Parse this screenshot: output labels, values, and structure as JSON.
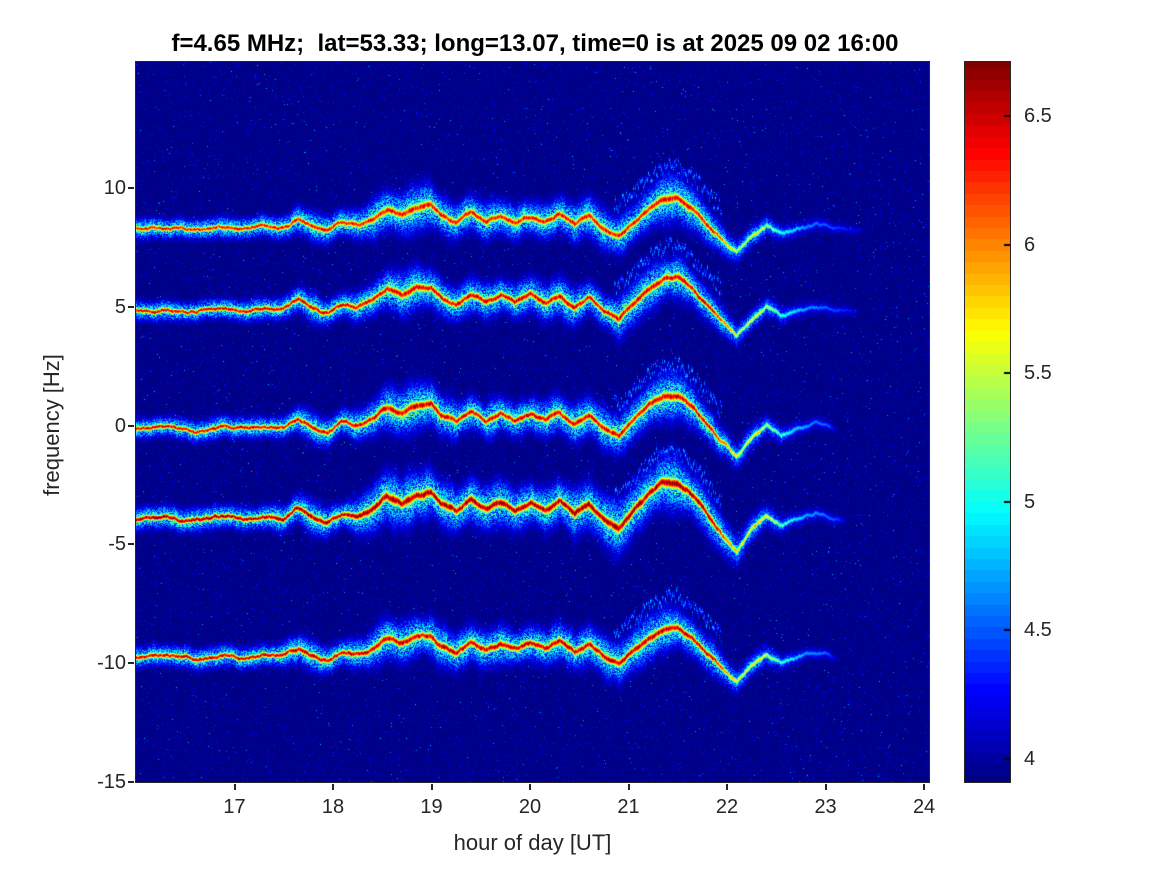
{
  "chart_data": {
    "type": "heatmap",
    "subtype": "doppler-spectrogram",
    "title": "f=4.65 MHz;  lat=53.33; long=13.07, time=0 is at 2025 09 02 16:00",
    "xlabel": "hour of day [UT]",
    "ylabel": "frequency [Hz]",
    "xlim": [
      16.0,
      24.05
    ],
    "ylim": [
      -15,
      15.3
    ],
    "xticks": [
      17,
      18,
      19,
      20,
      21,
      22,
      23,
      24
    ],
    "yticks": [
      10,
      5,
      0,
      -5,
      -10,
      -15
    ],
    "colormap": "jet",
    "colorbar": {
      "range": [
        3.91,
        6.71
      ],
      "ticks": [
        6.5,
        6,
        5.5,
        5,
        4.5,
        4
      ]
    },
    "background_level": 3.95,
    "traces": [
      {
        "name": "trace-1",
        "base_hz": 8.3,
        "peak_level": 6.35,
        "amp_scale": 0.95,
        "spread_scale": 1.0,
        "end_hour": 23.45
      },
      {
        "name": "trace-2",
        "base_hz": 4.87,
        "peak_level": 6.45,
        "amp_scale": 1.0,
        "spread_scale": 0.95,
        "end_hour": 23.4
      },
      {
        "name": "trace-3",
        "base_hz": -0.12,
        "peak_level": 6.45,
        "amp_scale": 1.05,
        "spread_scale": 1.0,
        "end_hour": 23.15
      },
      {
        "name": "trace-4",
        "base_hz": -3.95,
        "peak_level": 6.6,
        "amp_scale": 1.2,
        "spread_scale": 1.25,
        "end_hour": 23.25
      },
      {
        "name": "trace-5",
        "base_hz": -9.75,
        "peak_level": 6.5,
        "amp_scale": 0.95,
        "spread_scale": 1.0,
        "end_hour": 23.15
      }
    ],
    "doppler_waveform": {
      "hour": [
        16.0,
        16.3,
        16.6,
        16.9,
        17.1,
        17.3,
        17.5,
        17.65,
        17.8,
        17.95,
        18.1,
        18.25,
        18.4,
        18.55,
        18.7,
        18.85,
        19.0,
        19.1,
        19.25,
        19.4,
        19.55,
        19.7,
        19.85,
        20.0,
        20.15,
        20.3,
        20.45,
        20.6,
        20.75,
        20.9,
        21.05,
        21.2,
        21.35,
        21.5,
        21.65,
        21.8,
        21.95,
        22.1,
        22.25,
        22.4,
        22.55,
        22.7,
        22.9,
        23.1,
        23.3,
        23.5,
        24.0
      ],
      "delta_hz": [
        0.0,
        0.05,
        -0.05,
        0.1,
        0.0,
        0.15,
        0.05,
        0.45,
        0.1,
        -0.1,
        0.25,
        0.1,
        0.4,
        0.85,
        0.6,
        0.95,
        1.0,
        0.55,
        0.25,
        0.7,
        0.3,
        0.6,
        0.35,
        0.6,
        0.3,
        0.65,
        0.2,
        0.55,
        0.0,
        -0.35,
        0.3,
        0.9,
        1.3,
        1.35,
        0.9,
        0.2,
        -0.5,
        -1.1,
        -0.4,
        0.15,
        -0.25,
        0.0,
        0.2,
        0.05,
        0.0,
        0.0,
        0.0
      ]
    },
    "spread_profile": {
      "hour": [
        16.0,
        17.0,
        17.5,
        17.8,
        18.1,
        18.5,
        18.8,
        19.2,
        19.6,
        20.0,
        20.5,
        21.0,
        21.4,
        21.8,
        22.1,
        22.4,
        22.7,
        23.0,
        23.5,
        24.0
      ],
      "scale": [
        0.55,
        0.6,
        0.75,
        1.1,
        0.8,
        1.7,
        1.9,
        1.5,
        1.45,
        1.4,
        1.55,
        1.8,
        2.1,
        1.3,
        0.9,
        0.6,
        0.4,
        0.3,
        0.3,
        0.3
      ]
    },
    "intensity_profile": {
      "hour": [
        16.0,
        21.85,
        22.0,
        22.15,
        22.3,
        22.45,
        22.6,
        22.8,
        23.0,
        23.2,
        23.35,
        23.5,
        24.0
      ],
      "scale": [
        1.0,
        1.0,
        0.8,
        0.65,
        0.75,
        0.6,
        0.45,
        0.32,
        0.25,
        0.18,
        0.1,
        0.0,
        0.0
      ]
    },
    "echo_branch": {
      "hours": [
        20.85,
        21.95
      ],
      "offset_hz": 1.2,
      "level": 4.8
    }
  }
}
